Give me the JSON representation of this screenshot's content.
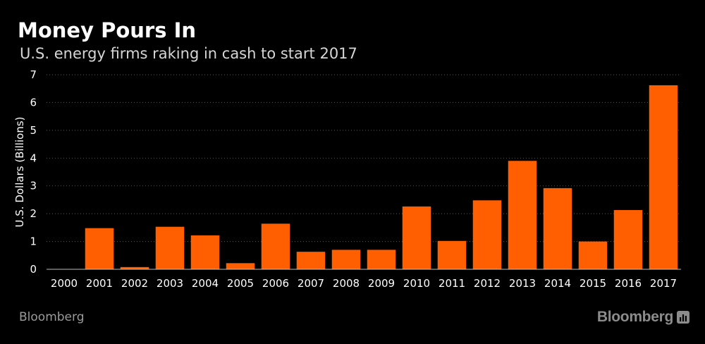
{
  "header": {
    "title": "Money Pours In",
    "subtitle": "U.S. energy firms raking in cash to start 2017"
  },
  "footer": {
    "source": "Bloomberg",
    "logo": "Bloomberg"
  },
  "colors": {
    "background": "#000000",
    "bar": "#ff5f00",
    "gridline": "#5a5a5a",
    "text": "#ffffff"
  },
  "chart_data": {
    "type": "bar",
    "title": "Money Pours In",
    "subtitle": "U.S. energy firms raking in cash to start 2017",
    "xlabel": "",
    "ylabel": "U.S. Dollars (Billions)",
    "ylim": [
      0,
      7
    ],
    "yticks": [
      0,
      1,
      2,
      3,
      4,
      5,
      6,
      7
    ],
    "grid": true,
    "categories": [
      "2000",
      "2001",
      "2002",
      "2003",
      "2004",
      "2005",
      "2006",
      "2007",
      "2008",
      "2009",
      "2010",
      "2011",
      "2012",
      "2013",
      "2014",
      "2015",
      "2016",
      "2017"
    ],
    "values": [
      0,
      1.48,
      0.08,
      1.53,
      1.22,
      0.22,
      1.64,
      0.63,
      0.7,
      0.7,
      2.26,
      1.02,
      2.48,
      3.9,
      2.92,
      1.0,
      2.13,
      6.62
    ]
  }
}
